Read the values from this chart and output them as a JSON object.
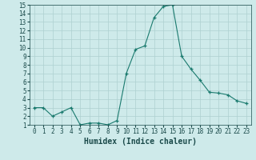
{
  "x": [
    0,
    1,
    2,
    3,
    4,
    5,
    6,
    7,
    8,
    9,
    10,
    11,
    12,
    13,
    14,
    15,
    16,
    17,
    18,
    19,
    20,
    21,
    22,
    23
  ],
  "y": [
    3,
    3,
    2,
    2.5,
    3,
    1,
    1.2,
    1.2,
    1,
    1.5,
    7,
    9.8,
    10.2,
    13.5,
    14.8,
    15,
    9,
    7.5,
    6.2,
    4.8,
    4.7,
    4.5,
    3.8,
    3.5
  ],
  "line_color": "#1a7a6e",
  "marker_color": "#1a7a6e",
  "bg_color": "#ceeaea",
  "grid_color": "#aed0d0",
  "xlabel": "Humidex (Indice chaleur)",
  "xlim": [
    -0.5,
    23.5
  ],
  "ylim": [
    1,
    15
  ],
  "yticks": [
    1,
    2,
    3,
    4,
    5,
    6,
    7,
    8,
    9,
    10,
    11,
    12,
    13,
    14,
    15
  ],
  "xticks": [
    0,
    1,
    2,
    3,
    4,
    5,
    6,
    7,
    8,
    9,
    10,
    11,
    12,
    13,
    14,
    15,
    16,
    17,
    18,
    19,
    20,
    21,
    22,
    23
  ],
  "font_color": "#1a4a4a",
  "tick_fontsize": 5.5,
  "label_fontsize": 7
}
